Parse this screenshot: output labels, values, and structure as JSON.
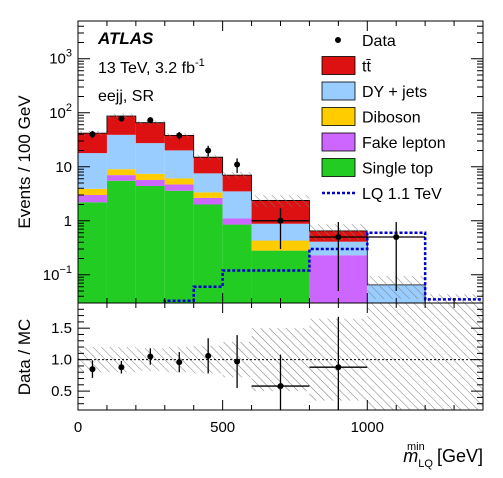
{
  "chart_data": [
    {
      "type": "stacked-histogram",
      "ylabel": "Events / 100 GeV",
      "yscale": "log",
      "ylim": [
        0.03,
        5000
      ],
      "xlim": [
        0,
        1400
      ],
      "y_ticks": [
        {
          "value": 0.1,
          "base": "10",
          "exp": "−1"
        },
        {
          "value": 1,
          "label": "1"
        },
        {
          "value": 10,
          "label": "10"
        },
        {
          "value": 100,
          "base": "10",
          "exp": "2"
        },
        {
          "value": 1000,
          "base": "10",
          "exp": "3"
        }
      ],
      "annotations": {
        "experiment": "ATLAS",
        "energy_prefix": "13 TeV, 3.2 fb",
        "energy_exp": "-1",
        "region": "eejj, SR"
      },
      "bin_edges": [
        0,
        100,
        200,
        300,
        400,
        500,
        600,
        800,
        1000,
        1200,
        1400
      ],
      "stack": [
        {
          "name": "Single top",
          "color": "#22cc22",
          "values": [
            2.2,
            5.5,
            4.4,
            3.6,
            2.0,
            0.85,
            0.28,
            0.03,
            0.03,
            0.03
          ]
        },
        {
          "name": "Fake lepton",
          "color": "#cc66ff",
          "values": [
            0.8,
            1.5,
            1.3,
            1.1,
            0.65,
            0.25,
            0.0,
            0.2,
            0.0,
            0.0
          ]
        },
        {
          "name": "Diboson",
          "color": "#ffcc00",
          "values": [
            0.9,
            2.0,
            1.7,
            1.4,
            0.7,
            0.0,
            0.15,
            0.0,
            0.0,
            0.0
          ]
        },
        {
          "name": "DY + jets",
          "color": "#99ccff",
          "values": [
            14.0,
            30.0,
            20.0,
            14.0,
            4.2,
            2.4,
            0.45,
            0.18,
            0.035,
            0.0
          ]
        },
        {
          "name": "tt̄",
          "color": "#dd1111",
          "values": [
            24.0,
            48.0,
            38.0,
            18.0,
            7.5,
            3.5,
            1.5,
            0.24,
            0.0,
            0.0
          ]
        }
      ],
      "mc_total_line": [
        42.0,
        87.0,
        65.0,
        38.0,
        15.0,
        7.0,
        2.1,
        0.62,
        0.038,
        0.03
      ],
      "signal": {
        "name": "LQ 1.1 TeV",
        "color": "#0000cc",
        "values": [
          0.0,
          0.0,
          0.0,
          0.033,
          0.06,
          0.12,
          0.12,
          0.3,
          0.6,
          0.035
        ]
      },
      "data": {
        "name": "Data",
        "points": [
          {
            "x": 50,
            "y": 40,
            "err": 6
          },
          {
            "x": 150,
            "y": 78,
            "err": 9
          },
          {
            "x": 250,
            "y": 73,
            "err": 9
          },
          {
            "x": 350,
            "y": 38,
            "err": 6
          },
          {
            "x": 450,
            "y": 20,
            "err": 4.5
          },
          {
            "x": 550,
            "y": 11,
            "err": 3.3
          },
          {
            "x": 700,
            "y": 1.0,
            "xerr": 100,
            "err": 0.7
          },
          {
            "x": 900,
            "y": 0.5,
            "xerr": 100,
            "err": 0.45
          },
          {
            "x": 1100,
            "y": 0.5,
            "xerr": 100,
            "err": 0.45
          }
        ]
      },
      "legend": {
        "placement": "top-right",
        "entries": [
          {
            "label": "Data",
            "kind": "point",
            "color": "#000000"
          },
          {
            "label": "tt̄",
            "kind": "box",
            "color": "#dd1111"
          },
          {
            "label": "DY + jets",
            "kind": "box",
            "color": "#99ccff"
          },
          {
            "label": "Diboson",
            "kind": "box",
            "color": "#ffcc00"
          },
          {
            "label": "Fake lepton",
            "kind": "box",
            "color": "#cc66ff"
          },
          {
            "label": "Single top",
            "kind": "box",
            "color": "#22cc22"
          },
          {
            "label": "LQ 1.1 TeV",
            "kind": "dashed",
            "color": "#0000cc"
          }
        ]
      }
    },
    {
      "type": "ratio",
      "ylabel": "Data / MC",
      "xlabel_main": "m",
      "xlabel_sup": "min",
      "xlabel_sub": "LQ",
      "xlabel_unit": "[GeV]",
      "ylim": [
        0.2,
        1.9
      ],
      "xlim": [
        0,
        1400
      ],
      "x_ticks": [
        0,
        500,
        1000
      ],
      "y_ticks": [
        "0.5",
        "1.0",
        "1.5"
      ],
      "y_tick_values": [
        0.5,
        1.0,
        1.5
      ],
      "reference_line": 1.0,
      "uncertainty_band": {
        "bin_edges": [
          0,
          100,
          200,
          300,
          400,
          500,
          600,
          800,
          1000,
          1200,
          1400
        ],
        "half_widths": [
          0.2,
          0.2,
          0.18,
          0.2,
          0.22,
          0.28,
          0.5,
          0.65,
          0.9,
          0.9
        ]
      },
      "points": [
        {
          "x": 50,
          "y": 0.85,
          "err": 0.14
        },
        {
          "x": 150,
          "y": 0.88,
          "err": 0.1
        },
        {
          "x": 250,
          "y": 1.05,
          "err": 0.13
        },
        {
          "x": 350,
          "y": 0.96,
          "err": 0.16
        },
        {
          "x": 450,
          "y": 1.06,
          "err": 0.28
        },
        {
          "x": 550,
          "y": 0.97,
          "err": 0.42
        },
        {
          "x": 700,
          "y": 0.58,
          "xerr": 100,
          "err": 0.5
        },
        {
          "x": 900,
          "y": 0.88,
          "xerr": 100,
          "err": 0.8
        }
      ]
    }
  ]
}
